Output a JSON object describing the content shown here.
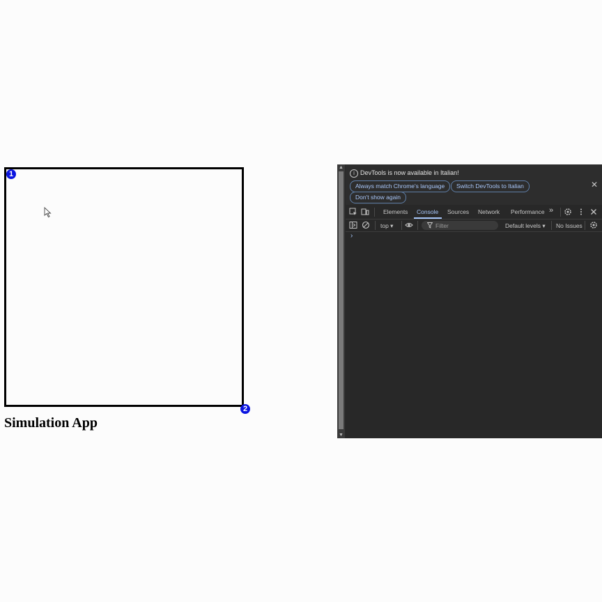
{
  "app": {
    "title": "Simulation App",
    "handles": [
      "1",
      "2"
    ]
  },
  "devtools": {
    "infobar": {
      "message": "DevTools is now available in Italian!",
      "buttons": [
        "Always match Chrome's language",
        "Switch DevTools to Italian",
        "Don't show again"
      ],
      "close_icon": "close-icon"
    },
    "tabs": [
      "Elements",
      "Console",
      "Sources",
      "Network",
      "Performance"
    ],
    "active_tab": "Console",
    "more_tabs": "»",
    "filterbar": {
      "context": "top ▾",
      "filter_placeholder": "Filter",
      "levels": "Default levels ▾",
      "issues": "No Issues"
    },
    "prompt": "›"
  },
  "colors": {
    "accent": "#a8c7fa",
    "handle": "#0a14e0",
    "devtools_bg": "#282828"
  }
}
